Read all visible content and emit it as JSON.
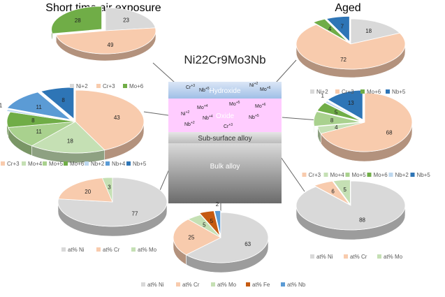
{
  "headings": {
    "short_time": "Short time air exposure",
    "aged": "Aged",
    "alloy": "Ni22Cr9Mo3Nb"
  },
  "layers": {
    "hydroxide": {
      "label": "Hydroxide",
      "species": [
        {
          "el": "Cr",
          "ch": "+3"
        },
        {
          "el": "Nb",
          "ch": "+5"
        },
        {
          "el": "Ni",
          "ch": "+2"
        },
        {
          "el": "Mo",
          "ch": "+6"
        }
      ]
    },
    "oxide": {
      "label": "Oxide",
      "species": [
        {
          "el": "Mo",
          "ch": "+4"
        },
        {
          "el": "Mo",
          "ch": "+5"
        },
        {
          "el": "Mo",
          "ch": "+6"
        },
        {
          "el": "Ni",
          "ch": "+2"
        },
        {
          "el": "Nb",
          "ch": "+4"
        },
        {
          "el": "Nb",
          "ch": "+5"
        },
        {
          "el": "Nb",
          "ch": "+2"
        },
        {
          "el": "Cr",
          "ch": "+3"
        }
      ]
    },
    "subsurface": {
      "label": "Sub-surface alloy"
    },
    "bulk": {
      "label": "Bulk alloy"
    }
  },
  "colors": {
    "Ni+2": "#d9d9d9",
    "Cr+3": "#f8cbad",
    "Mo+4": "#c5e0b4",
    "Mo+5": "#a9d18e",
    "Mo+6": "#70ad47",
    "Nb+2": "#bdd7ee",
    "Nb+4": "#5b9bd5",
    "Nb+5": "#2e75b6",
    "at% Ni": "#d9d9d9",
    "at% Cr": "#f8cbad",
    "at% Mo": "#c5e0b4",
    "at% Fe": "#c55a11",
    "at% Nb": "#5b9bd5"
  },
  "chart_data": [
    {
      "type": "pie",
      "title": "",
      "panel": "short-time-hydroxide",
      "categories": [
        "Ni+2",
        "Cr+3",
        "Mo+6"
      ],
      "values": [
        23,
        49,
        28
      ],
      "legend": [
        "Ni+2",
        "Cr+3",
        "Mo+6"
      ]
    },
    {
      "type": "pie",
      "title": "",
      "panel": "short-time-oxide",
      "categories": [
        "Cr+3",
        "Mo+4",
        "Mo+5",
        "Mo+6",
        "Nb+2",
        "Nb+4",
        "Nb+5"
      ],
      "values": [
        43,
        18,
        11,
        8,
        1,
        11,
        8
      ],
      "legend": [
        "Cr+3",
        "Mo+4",
        "Mo+5",
        "Mo+6",
        "Nb+2",
        "Nb+4",
        "Nb+5"
      ]
    },
    {
      "type": "pie",
      "title": "",
      "panel": "short-time-subsurface",
      "categories": [
        "at% Ni",
        "at% Cr",
        "at% Mo"
      ],
      "values": [
        77,
        20,
        3
      ],
      "legend": [
        "at% Ni",
        "at% Cr",
        "at% Mo"
      ]
    },
    {
      "type": "pie",
      "title": "",
      "panel": "bulk",
      "categories": [
        "at% Ni",
        "at% Cr",
        "at% Mo",
        "at% Fe",
        "at% Nb"
      ],
      "values": [
        63,
        25,
        5,
        5,
        2
      ],
      "legend": [
        "at% Ni",
        "at% Cr",
        "at% Mo",
        "at% Fe",
        "at% Nb"
      ]
    },
    {
      "type": "pie",
      "title": "",
      "panel": "aged-hydroxide",
      "categories": [
        "Ni+2",
        "Cr+3",
        "Mo+6",
        "Nb+5"
      ],
      "values": [
        18,
        72,
        4,
        7
      ],
      "legend": [
        "Ni+2",
        "Cr+3",
        "Mo+6",
        "Nb+5"
      ]
    },
    {
      "type": "pie",
      "title": "",
      "panel": "aged-oxide",
      "categories": [
        "Cr+3",
        "Mo+4",
        "Mo+5",
        "Mo+6",
        "Nb+2",
        "Nb+5"
      ],
      "values": [
        68,
        4,
        8,
        5,
        1,
        13
      ],
      "legend": [
        "Cr+3",
        "Mo+4",
        "Mo+5",
        "Mo+6",
        "Nb+2",
        "Nb+5"
      ]
    },
    {
      "type": "pie",
      "title": "",
      "panel": "aged-subsurface",
      "categories": [
        "at% Ni",
        "at% Cr",
        "at% Mo"
      ],
      "values": [
        88,
        6,
        5
      ],
      "legend": [
        "at% Ni",
        "at% Cr",
        "at% Mo"
      ]
    }
  ]
}
